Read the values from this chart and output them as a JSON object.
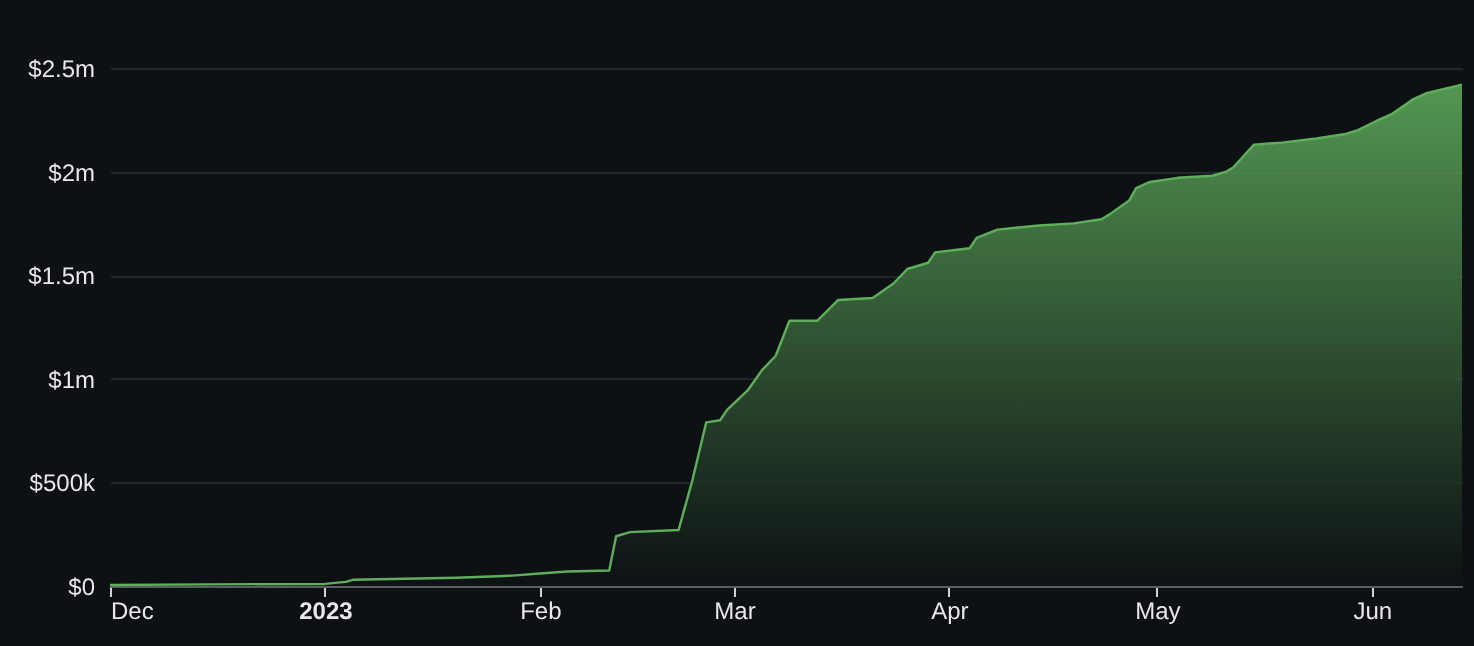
{
  "chart_data": {
    "type": "area",
    "x": [
      "2022-12-01",
      "2022-12-15",
      "2023-01-01",
      "2023-01-04",
      "2023-01-05",
      "2023-01-20",
      "2023-01-28",
      "2023-02-01",
      "2023-02-05",
      "2023-02-11",
      "2023-02-12",
      "2023-02-14",
      "2023-02-21",
      "2023-02-23",
      "2023-02-25",
      "2023-02-27",
      "2023-02-28",
      "2023-03-03",
      "2023-03-05",
      "2023-03-07",
      "2023-03-09",
      "2023-03-13",
      "2023-03-16",
      "2023-03-21",
      "2023-03-24",
      "2023-03-26",
      "2023-03-29",
      "2023-03-30",
      "2023-04-04",
      "2023-04-05",
      "2023-04-08",
      "2023-04-14",
      "2023-04-19",
      "2023-04-23",
      "2023-04-24",
      "2023-04-27",
      "2023-04-28",
      "2023-04-30",
      "2023-05-04",
      "2023-05-09",
      "2023-05-11",
      "2023-05-12",
      "2023-05-15",
      "2023-05-19",
      "2023-05-24",
      "2023-05-28",
      "2023-05-30",
      "2023-06-02",
      "2023-06-04",
      "2023-06-07",
      "2023-06-09",
      "2023-06-14"
    ],
    "series": [
      {
        "color": "#5fae5c",
        "values": [
          5000,
          8000,
          10000,
          20000,
          30000,
          40000,
          50000,
          60000,
          70000,
          75000,
          240000,
          260000,
          270000,
          510000,
          790000,
          800000,
          850000,
          945000,
          1040000,
          1110000,
          1280000,
          1280000,
          1380000,
          1390000,
          1460000,
          1530000,
          1560000,
          1610000,
          1630000,
          1680000,
          1720000,
          1740000,
          1750000,
          1770000,
          1790000,
          1860000,
          1920000,
          1950000,
          1970000,
          1980000,
          2000000,
          2020000,
          2130000,
          2140000,
          2160000,
          2180000,
          2200000,
          2250000,
          2280000,
          2350000,
          2380000,
          2420000
        ]
      }
    ],
    "xlim": [
      "2022-12-01",
      "2023-06-14"
    ],
    "xticks": [
      {
        "value": "2022-12-01",
        "label": "Dec"
      },
      {
        "value": "2023-01-01",
        "label": "2023"
      },
      {
        "value": "2023-02-01",
        "label": "Feb"
      },
      {
        "value": "2023-03-01",
        "label": "Mar"
      },
      {
        "value": "2023-04-01",
        "label": "Apr"
      },
      {
        "value": "2023-05-01",
        "label": "May"
      },
      {
        "value": "2023-06-01",
        "label": "Jun"
      }
    ],
    "ylim": [
      0,
      2500000
    ],
    "yticks": [
      {
        "value": 0,
        "label": "$0"
      },
      {
        "value": 500000,
        "label": "$500k"
      },
      {
        "value": 1000000,
        "label": "$1m"
      },
      {
        "value": 1500000,
        "label": "$1.5m"
      },
      {
        "value": 2000000,
        "label": "$2m"
      },
      {
        "value": 2500000,
        "label": "$2.5m"
      }
    ],
    "grid": "y"
  }
}
